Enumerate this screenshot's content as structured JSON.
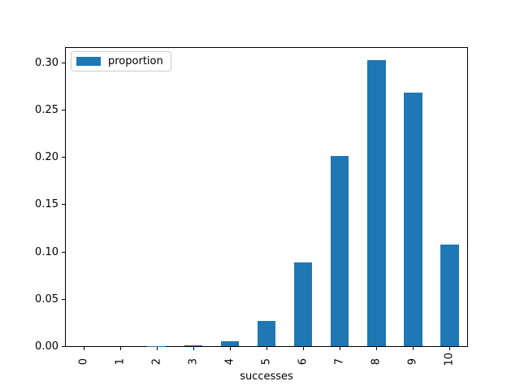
{
  "chart_data": {
    "type": "bar",
    "title": "",
    "xlabel": "successes",
    "ylabel": "",
    "categories": [
      "0",
      "1",
      "2",
      "3",
      "4",
      "5",
      "6",
      "7",
      "8",
      "9",
      "10"
    ],
    "series": [
      {
        "name": "proportion",
        "color": "#1f77b4",
        "values": [
          1e-07,
          4.1e-06,
          7.37e-05,
          0.000786,
          0.0055,
          0.0264,
          0.0881,
          0.2013,
          0.302,
          0.2684,
          0.1074
        ]
      }
    ],
    "y_ticks": [
      "0.00",
      "0.05",
      "0.10",
      "0.15",
      "0.20",
      "0.25",
      "0.30"
    ],
    "ylim": [
      0,
      0.317
    ],
    "grid": false,
    "legend": {
      "label": "proportion",
      "position": "upper left"
    }
  }
}
